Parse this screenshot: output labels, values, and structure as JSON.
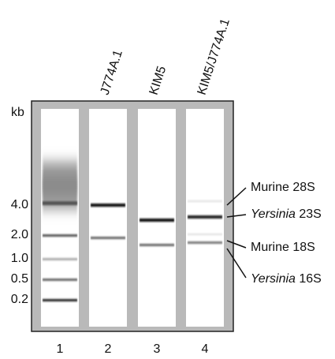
{
  "kb_label": "kb",
  "lanes": [
    {
      "number": "1"
    },
    {
      "number": "2",
      "sample": "J774A.1"
    },
    {
      "number": "3",
      "sample": "KIM5"
    },
    {
      "number": "4",
      "sample": "KIM5/J774A.1"
    }
  ],
  "ladder_labels": [
    "4.0",
    "2.0",
    "1.0",
    "0.5",
    "0.2"
  ],
  "annotations": [
    {
      "text": "Murine 28S"
    },
    {
      "italic": "Yersinia",
      "text": "23S"
    },
    {
      "text": "Murine 18S"
    },
    {
      "italic": "Yersinia",
      "text": "16S"
    }
  ]
}
